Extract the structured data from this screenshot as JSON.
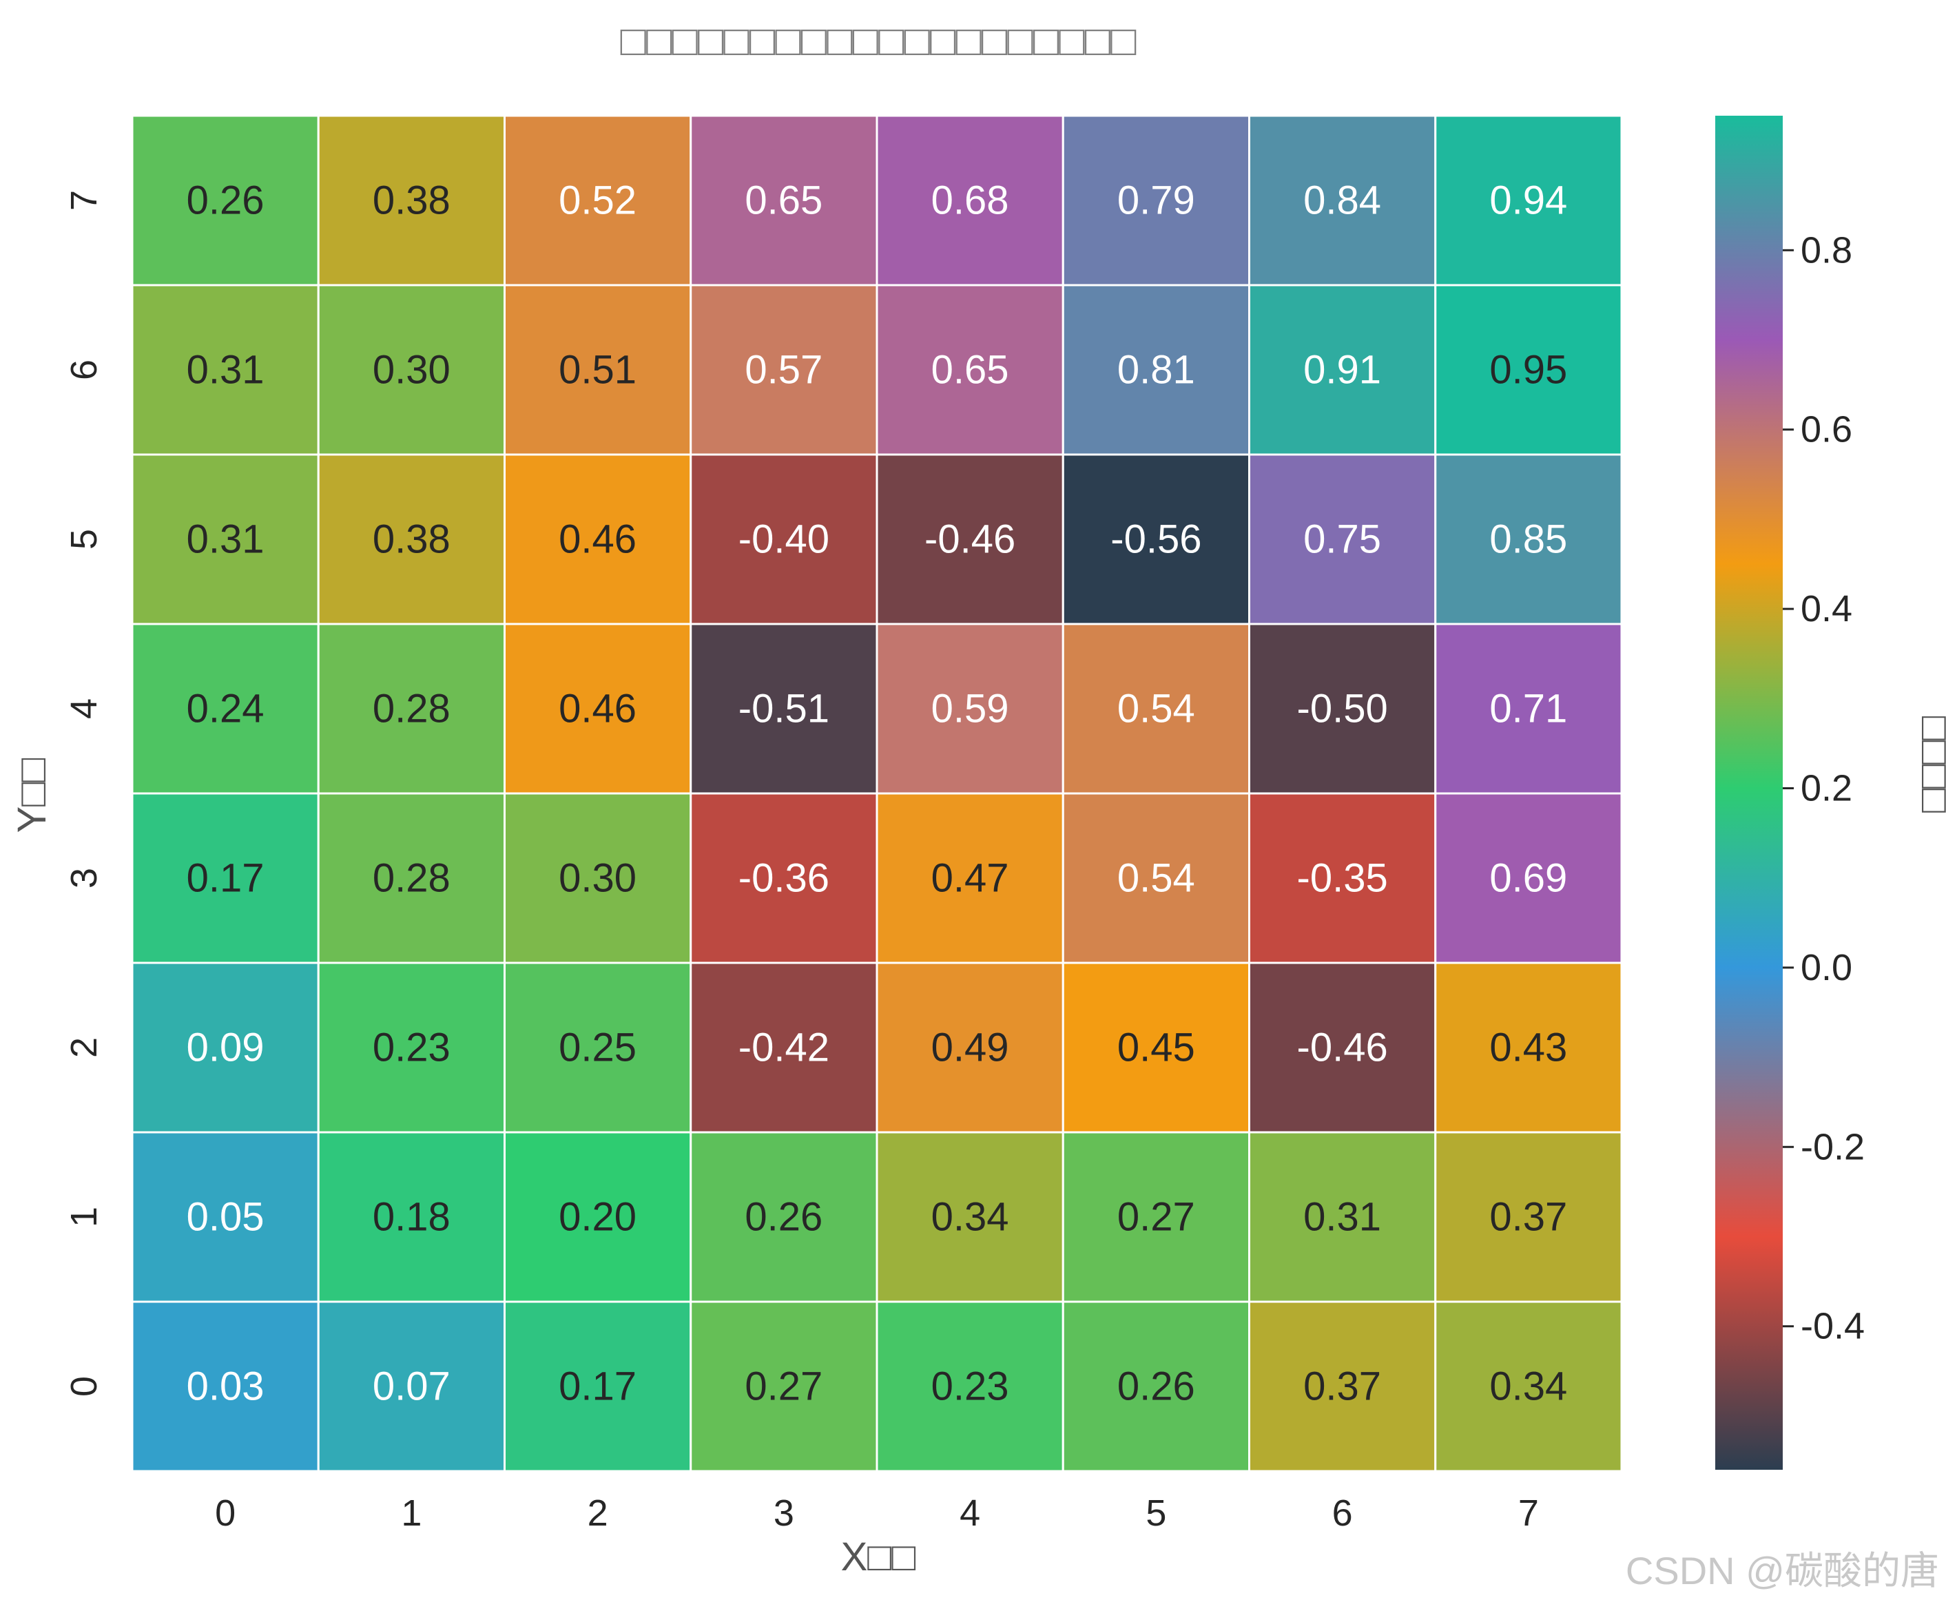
{
  "chart_data": {
    "type": "heatmap",
    "title": "□□□□□□□□□□□□□□□□□□□□",
    "xlabel": "X□□",
    "ylabel": "Y□□",
    "colorbar_label": "□□□□",
    "x_categories": [
      "0",
      "1",
      "2",
      "3",
      "4",
      "5",
      "6",
      "7"
    ],
    "y_categories": [
      "0",
      "1",
      "2",
      "3",
      "4",
      "5",
      "6",
      "7"
    ],
    "values": [
      [
        0.03,
        0.07,
        0.17,
        0.27,
        0.23,
        0.26,
        0.37,
        0.34
      ],
      [
        0.05,
        0.18,
        0.2,
        0.26,
        0.34,
        0.27,
        0.31,
        0.37
      ],
      [
        0.09,
        0.23,
        0.25,
        -0.42,
        0.49,
        0.45,
        -0.46,
        0.43
      ],
      [
        0.17,
        0.28,
        0.3,
        -0.36,
        0.47,
        0.54,
        -0.35,
        0.69
      ],
      [
        0.24,
        0.28,
        0.46,
        -0.51,
        0.59,
        0.54,
        -0.5,
        0.71
      ],
      [
        0.31,
        0.38,
        0.46,
        -0.4,
        -0.46,
        -0.56,
        0.75,
        0.85
      ],
      [
        0.31,
        0.3,
        0.51,
        0.57,
        0.65,
        0.81,
        0.91,
        0.95
      ],
      [
        0.26,
        0.38,
        0.52,
        0.65,
        0.68,
        0.79,
        0.84,
        0.94
      ]
    ],
    "value_format": "0.00",
    "vmin": -0.56,
    "vmax": 0.95,
    "colorbar_ticks": [
      -0.4,
      -0.2,
      0.0,
      0.2,
      0.4,
      0.6,
      0.8
    ],
    "colormap": [
      {
        "v": -0.56,
        "color": "#2c3e50"
      },
      {
        "v": -0.3,
        "color": "#e74c3c"
      },
      {
        "v": 0.0,
        "color": "#3498db"
      },
      {
        "v": 0.2,
        "color": "#2ecc71"
      },
      {
        "v": 0.45,
        "color": "#f39c12"
      },
      {
        "v": 0.7,
        "color": "#9b59b6"
      },
      {
        "v": 0.95,
        "color": "#1abc9c"
      }
    ],
    "grid_line_color": "#ffffff",
    "legend_placement": "right"
  },
  "watermark": "CSDN @碳酸的唐"
}
